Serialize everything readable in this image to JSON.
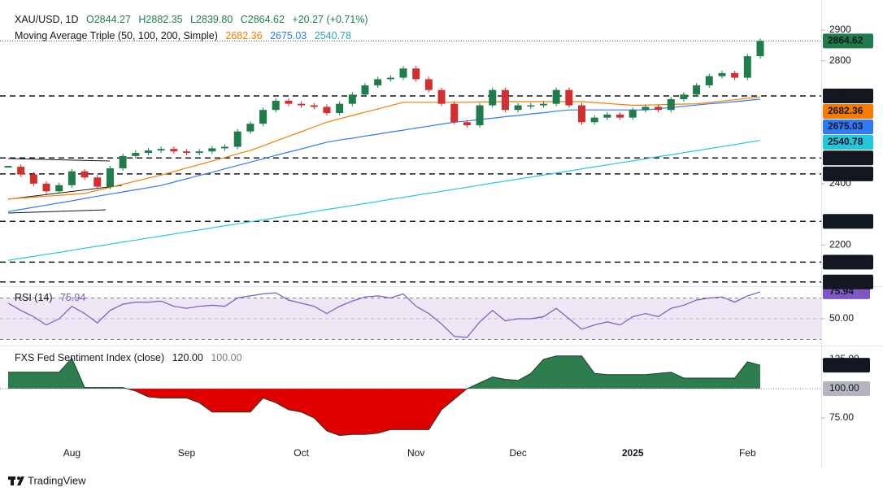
{
  "header": {
    "symbol": "XAU/USD, 1D",
    "ohlc": [
      "O2844.27",
      "H2882.35",
      "L2839.80",
      "C2864.62"
    ],
    "change": "+20.27 (+0.71%)",
    "indicator": "Moving Average Triple (50, 100, 200, Simple)"
  },
  "chart_data": [
    {
      "type": "candlestick",
      "categories": [
        null,
        null,
        null,
        null,
        null,
        "Aug",
        null,
        null,
        null,
        null,
        null,
        null,
        null,
        null,
        "Sep",
        null,
        null,
        null,
        null,
        null,
        null,
        null,
        null,
        "Oct",
        null,
        null,
        null,
        null,
        null,
        null,
        null,
        null,
        "Nov",
        null,
        null,
        null,
        null,
        null,
        null,
        null,
        "Dec",
        null,
        null,
        null,
        null,
        null,
        null,
        null,
        null,
        "2025",
        null,
        null,
        null,
        null,
        null,
        null,
        null,
        null,
        "Feb",
        null
      ],
      "values": [
        2455,
        2430,
        2400,
        2375,
        2395,
        2440,
        2420,
        2390,
        2450,
        2490,
        2500,
        2508,
        2513,
        2505,
        2500,
        2505,
        2515,
        2520,
        2570,
        2595,
        2640,
        2670,
        2660,
        2655,
        2650,
        2630,
        2660,
        2690,
        2720,
        2740,
        2745,
        2775,
        2740,
        2705,
        2660,
        2600,
        2590,
        2655,
        2705,
        2640,
        2655,
        2655,
        2660,
        2705,
        2655,
        2600,
        2615,
        2625,
        2615,
        2640,
        2650,
        2640,
        2675,
        2690,
        2720,
        2750,
        2760,
        2745,
        2815,
        2864.62
      ],
      "up_color": "#1e7d4a",
      "down_color": "#d32f2f",
      "overlays": [
        {
          "color": "#f57c00",
          "values": [
            2350,
            2353,
            2356,
            2359,
            2362,
            2365,
            2368,
            2378,
            2388,
            2398,
            2408,
            2418,
            2428,
            2439,
            2451,
            2462,
            2474,
            2485,
            2497,
            2508,
            2523,
            2539,
            2554,
            2569,
            2585,
            2600,
            2611,
            2622,
            2633,
            2643,
            2654,
            2665,
            2665,
            2665,
            2665,
            2665,
            2665,
            2666,
            2666,
            2667,
            2667,
            2667,
            2667,
            2667,
            2667,
            2667,
            2664,
            2661,
            2658,
            2655,
            2656,
            2657,
            2658,
            2659,
            2660,
            2664,
            2669,
            2673,
            2678,
            2682.36
          ]
        },
        {
          "color": "#3179f5",
          "values": [
            2309,
            2316,
            2323,
            2330,
            2337,
            2344,
            2352,
            2359,
            2366,
            2373,
            2380,
            2387,
            2394,
            2405,
            2416,
            2427,
            2437,
            2448,
            2459,
            2470,
            2481,
            2492,
            2503,
            2513,
            2524,
            2535,
            2542,
            2548,
            2555,
            2561,
            2568,
            2574,
            2581,
            2587,
            2594,
            2600,
            2604,
            2609,
            2613,
            2618,
            2622,
            2627,
            2631,
            2636,
            2640,
            2640,
            2640,
            2640,
            2640,
            2640,
            2640,
            2644,
            2648,
            2652,
            2656,
            2660,
            2663,
            2667,
            2671,
            2675.03
          ]
        },
        {
          "color": "#26c6da",
          "values": [
            2150,
            2157,
            2163,
            2170,
            2176,
            2183,
            2190,
            2196,
            2203,
            2210,
            2216,
            2223,
            2229,
            2236,
            2243,
            2249,
            2256,
            2263,
            2269,
            2276,
            2282,
            2289,
            2296,
            2302,
            2309,
            2316,
            2322,
            2329,
            2335,
            2342,
            2349,
            2355,
            2362,
            2369,
            2375,
            2382,
            2388,
            2395,
            2402,
            2408,
            2415,
            2421,
            2428,
            2435,
            2441,
            2448,
            2455,
            2461,
            2468,
            2474,
            2481,
            2488,
            2494,
            2501,
            2507,
            2514,
            2521,
            2527,
            2534,
            2540.78
          ]
        }
      ],
      "levels": [
        2685.51,
        2483.75,
        2431.61,
        2277.31,
        2144.48,
        2079.76
      ],
      "ylim": [
        2066,
        2998
      ],
      "yticks": [
        2900,
        2800,
        2400,
        2200
      ]
    },
    {
      "type": "line",
      "title": "RSI (14)",
      "color": "#7e57c2",
      "band_color": "#ede7f6",
      "values": [
        65,
        58,
        52,
        44,
        50,
        62,
        55,
        46,
        58,
        64,
        66,
        66,
        67,
        62,
        60,
        62,
        63,
        62,
        70,
        72,
        74,
        75,
        68,
        65,
        62,
        55,
        62,
        67,
        71,
        72,
        70,
        74,
        62,
        55,
        45,
        33,
        32,
        47,
        58,
        48,
        50,
        50,
        52,
        60,
        50,
        40,
        44,
        47,
        44,
        52,
        55,
        52,
        60,
        63,
        68,
        70,
        71,
        66,
        72,
        75.94
      ],
      "bands": [
        70,
        30
      ],
      "ylim": [
        26.5,
        79
      ],
      "yticks": [
        {
          "value": 50,
          "label": "50.00"
        }
      ]
    },
    {
      "type": "area",
      "title": "FXS Fed Sentiment Index (close)",
      "last_label": "120.00",
      "baseline": {
        "value": 100,
        "label": "100.00"
      },
      "above_color": "#2e7d4f",
      "below_color": "#e00000",
      "values": [
        114,
        114,
        114,
        114,
        114,
        126,
        101,
        101,
        101,
        101,
        98,
        93,
        92,
        92,
        92,
        88,
        80,
        80,
        80,
        80,
        92,
        88,
        82,
        80,
        75,
        64,
        60,
        61,
        61,
        62,
        65,
        65,
        65,
        65,
        82,
        91,
        100,
        105,
        110,
        108,
        107,
        113,
        125,
        128,
        128,
        128,
        113,
        112,
        112,
        112,
        112,
        113,
        114,
        109,
        109,
        109,
        109,
        109,
        123,
        120
      ],
      "ylim": [
        53.5,
        134.7
      ],
      "yticks": [
        {
          "value": 125,
          "label": "125.00"
        },
        {
          "value": 75,
          "label": "75.00"
        }
      ]
    }
  ],
  "footer": {
    "brand": "TradingView"
  }
}
